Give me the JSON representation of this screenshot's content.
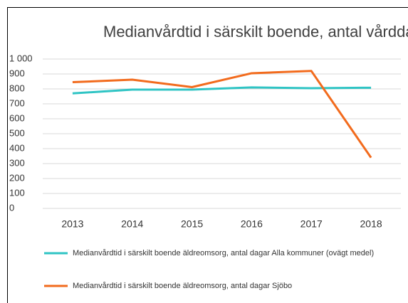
{
  "chart_data": {
    "type": "line",
    "title": "Medianvårdtid i särskilt boende, antal vårddagar",
    "categories": [
      "2013",
      "2014",
      "2015",
      "2016",
      "2017",
      "2018"
    ],
    "series": [
      {
        "name": "Medianvårdtid i särskilt boende äldreomsorg, antal dagar  Alla kommuner (ovägt medel)",
        "color": "#2fc4c4",
        "values": [
          770,
          795,
          795,
          810,
          805,
          808
        ]
      },
      {
        "name": "Medianvårdtid i särskilt boende äldreomsorg, antal dagar  Sjöbo",
        "color": "#f26b1d",
        "values": [
          845,
          862,
          812,
          905,
          920,
          340
        ]
      }
    ],
    "ylim": [
      0,
      1000
    ],
    "yticks": [
      0,
      100,
      200,
      300,
      400,
      500,
      600,
      700,
      800,
      900,
      {
        "value": 1000,
        "label": "1 000"
      }
    ],
    "grid": true
  }
}
